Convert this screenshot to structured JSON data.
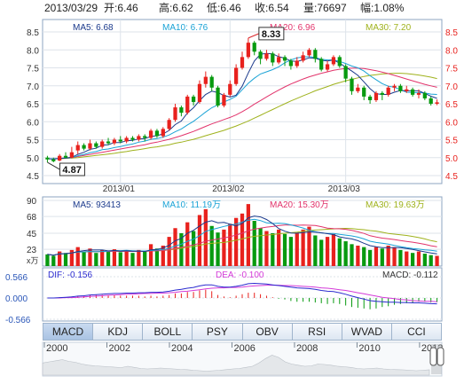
{
  "header": {
    "date": "2013/03/29",
    "open": "开:6.46",
    "high": "高:6.62",
    "low": "低:6.46",
    "close": "收:6.54",
    "volume": "量:76697",
    "change": "幅:1.08%"
  },
  "colors": {
    "up": "#e8211d",
    "down": "#079a0f",
    "ma5": "#1b3a8c",
    "ma10": "#1aa3d6",
    "ma20": "#e2336b",
    "ma30": "#9fb21c",
    "dif": "#2a2acf",
    "dea": "#d43ad8",
    "grid": "#dde3ea"
  },
  "price_panel": {
    "ma_labels": [
      "MA5: 6.68",
      "MA10: 6.76",
      "MA20: 6.96",
      "MA30: 7.20"
    ],
    "y_ticks": [
      "8.5",
      "8.0",
      "7.5",
      "7.0",
      "6.5",
      "6.0",
      "5.5",
      "5.0",
      "4.5"
    ],
    "x_ticks": [
      "2013/01",
      "2013/02",
      "2013/03"
    ],
    "high_label": "8.33",
    "low_label": "4.87"
  },
  "volume_panel": {
    "ma_labels": [
      "MA5: 93413",
      "MA10: 11.19万",
      "MA20: 15.30万",
      "MA30: 19.63万"
    ],
    "y_ticks": [
      "90",
      "68",
      "45",
      "23",
      "x万"
    ]
  },
  "macd_panel": {
    "labels": [
      "DIF: -0.156",
      "DEA: -0.100",
      "MACD: -0.112"
    ],
    "y_ticks": [
      "0.566",
      "0.000",
      "-0.566"
    ]
  },
  "tabs": [
    "MACD",
    "KDJ",
    "BOLL",
    "PSY",
    "OBV",
    "RSI",
    "WVAD",
    "CCI"
  ],
  "active_tab": "MACD",
  "timeline": {
    "years": [
      "2000",
      "2002",
      "2004",
      "2006",
      "2008",
      "2010",
      "2012"
    ]
  },
  "chart_data": {
    "type": "candlestick",
    "candles": [
      [
        5.0,
        4.95,
        5.05,
        4.87
      ],
      [
        4.95,
        4.9,
        5.0,
        4.87
      ],
      [
        4.92,
        5.05,
        5.1,
        4.9
      ],
      [
        5.05,
        5.0,
        5.15,
        4.98
      ],
      [
        5.0,
        5.15,
        5.3,
        4.98
      ],
      [
        5.2,
        5.35,
        5.45,
        5.1
      ],
      [
        5.35,
        5.25,
        5.4,
        5.2
      ],
      [
        5.25,
        5.4,
        5.5,
        5.2
      ],
      [
        5.4,
        5.3,
        5.45,
        5.25
      ],
      [
        5.3,
        5.45,
        5.5,
        5.25
      ],
      [
        5.45,
        5.4,
        5.55,
        5.35
      ],
      [
        5.4,
        5.5,
        5.55,
        5.35
      ],
      [
        5.5,
        5.45,
        5.6,
        5.4
      ],
      [
        5.45,
        5.55,
        5.6,
        5.4
      ],
      [
        5.55,
        5.5,
        5.6,
        5.45
      ],
      [
        5.5,
        5.6,
        5.65,
        5.45
      ],
      [
        5.6,
        5.55,
        5.65,
        5.45
      ],
      [
        5.55,
        5.75,
        5.8,
        5.5
      ],
      [
        5.75,
        5.6,
        5.8,
        5.55
      ],
      [
        5.6,
        5.8,
        5.85,
        5.55
      ],
      [
        5.8,
        6.05,
        6.1,
        5.75
      ],
      [
        6.05,
        6.4,
        6.5,
        6.0
      ],
      [
        6.4,
        6.25,
        6.45,
        6.15
      ],
      [
        6.25,
        6.7,
        6.75,
        6.2
      ],
      [
        6.7,
        6.55,
        6.75,
        6.45
      ],
      [
        6.55,
        7.05,
        7.15,
        6.5
      ],
      [
        7.05,
        7.25,
        7.4,
        6.95
      ],
      [
        7.25,
        6.95,
        7.3,
        6.85
      ],
      [
        6.95,
        6.45,
        7.0,
        6.4
      ],
      [
        6.45,
        6.75,
        6.8,
        6.4
      ],
      [
        6.75,
        7.05,
        7.15,
        6.7
      ],
      [
        7.05,
        7.5,
        7.6,
        7.0
      ],
      [
        7.5,
        7.8,
        7.95,
        7.45
      ],
      [
        7.8,
        8.2,
        8.33,
        7.75
      ],
      [
        8.2,
        7.95,
        8.25,
        7.85
      ],
      [
        7.95,
        7.75,
        8.0,
        7.6
      ],
      [
        7.75,
        7.9,
        8.0,
        7.7
      ],
      [
        7.9,
        7.65,
        7.95,
        7.55
      ],
      [
        7.65,
        7.8,
        7.9,
        7.6
      ],
      [
        7.8,
        7.7,
        7.85,
        7.55
      ],
      [
        7.7,
        7.55,
        7.75,
        7.45
      ],
      [
        7.55,
        7.7,
        7.8,
        7.5
      ],
      [
        7.7,
        7.85,
        7.95,
        7.65
      ],
      [
        7.85,
        8.0,
        8.05,
        7.8
      ],
      [
        8.0,
        7.75,
        8.05,
        7.65
      ],
      [
        7.75,
        7.45,
        7.8,
        7.4
      ],
      [
        7.45,
        7.6,
        7.7,
        7.4
      ],
      [
        7.6,
        7.8,
        7.85,
        7.55
      ],
      [
        7.8,
        7.55,
        7.85,
        7.5
      ],
      [
        7.55,
        7.2,
        7.6,
        7.1
      ],
      [
        7.2,
        6.85,
        7.25,
        6.75
      ],
      [
        6.85,
        6.95,
        7.05,
        6.8
      ],
      [
        6.95,
        6.7,
        7.0,
        6.6
      ],
      [
        6.7,
        6.6,
        6.75,
        6.5
      ],
      [
        6.6,
        6.8,
        6.85,
        6.55
      ],
      [
        6.8,
        6.75,
        6.85,
        6.6
      ],
      [
        6.75,
        6.95,
        7.0,
        6.7
      ],
      [
        6.95,
        7.0,
        7.05,
        6.85
      ],
      [
        7.0,
        6.85,
        7.05,
        6.8
      ],
      [
        6.85,
        6.9,
        7.0,
        6.8
      ],
      [
        6.9,
        6.75,
        6.95,
        6.7
      ],
      [
        6.75,
        6.8,
        6.9,
        6.65
      ],
      [
        6.8,
        6.65,
        6.85,
        6.6
      ],
      [
        6.65,
        6.5,
        6.7,
        6.45
      ],
      [
        6.5,
        6.54,
        6.62,
        6.46
      ]
    ],
    "volume": [
      16,
      14,
      20,
      18,
      22,
      26,
      20,
      24,
      18,
      22,
      20,
      23,
      19,
      21,
      18,
      22,
      20,
      30,
      24,
      28,
      40,
      52,
      45,
      60,
      48,
      70,
      78,
      55,
      46,
      50,
      58,
      66,
      72,
      85,
      62,
      52,
      48,
      45,
      50,
      44,
      40,
      46,
      50,
      54,
      42,
      36,
      40,
      44,
      38,
      34,
      30,
      28,
      26,
      22,
      26,
      24,
      28,
      26,
      22,
      20,
      18,
      20,
      17,
      15,
      14
    ],
    "ma5": [
      4.97,
      4.96,
      4.98,
      4.99,
      5.01,
      5.09,
      5.15,
      5.23,
      5.26,
      5.35,
      5.36,
      5.42,
      5.42,
      5.47,
      5.48,
      5.52,
      5.53,
      5.59,
      5.61,
      5.66,
      5.76,
      5.92,
      6.02,
      6.24,
      6.39,
      6.59,
      6.76,
      6.85,
      6.81,
      6.73,
      6.69,
      6.74,
      6.99,
      7.36,
      7.69,
      7.88,
      7.9,
      7.89,
      7.81,
      7.77,
      7.69,
      7.68,
      7.72,
      7.78,
      7.77,
      7.71,
      7.69,
      7.72,
      7.63,
      7.52,
      7.41,
      7.29,
      7.11,
      6.92,
      6.78,
      6.76,
      6.76,
      6.82,
      6.87,
      6.86,
      6.86,
      6.86,
      6.79,
      6.71,
      6.65
    ],
    "ma10": [
      4.97,
      4.97,
      4.98,
      4.99,
      5.0,
      5.05,
      5.09,
      5.14,
      5.17,
      5.22,
      5.24,
      5.28,
      5.31,
      5.35,
      5.38,
      5.43,
      5.46,
      5.51,
      5.53,
      5.57,
      5.63,
      5.72,
      5.8,
      5.91,
      6.01,
      6.14,
      6.27,
      6.39,
      6.47,
      6.55,
      6.62,
      6.71,
      6.89,
      7.07,
      7.21,
      7.33,
      7.39,
      7.45,
      7.53,
      7.64,
      7.72,
      7.78,
      7.8,
      7.81,
      7.79,
      7.74,
      7.72,
      7.72,
      7.68,
      7.62,
      7.55,
      7.5,
      7.41,
      7.28,
      7.17,
      7.06,
      6.99,
      6.96,
      6.89,
      6.82,
      6.81,
      6.81,
      6.8,
      6.77,
      6.76
    ],
    "ma20": [
      4.97,
      4.97,
      4.98,
      4.99,
      5.0,
      5.03,
      5.06,
      5.09,
      5.12,
      5.15,
      5.18,
      5.21,
      5.24,
      5.27,
      5.3,
      5.33,
      5.36,
      5.4,
      5.43,
      5.47,
      5.51,
      5.56,
      5.61,
      5.67,
      5.73,
      5.8,
      5.87,
      5.94,
      6.0,
      6.06,
      6.12,
      6.19,
      6.28,
      6.38,
      6.49,
      6.59,
      6.69,
      6.79,
      6.88,
      6.97,
      7.05,
      7.12,
      7.19,
      7.25,
      7.3,
      7.35,
      7.39,
      7.43,
      7.46,
      7.48,
      7.49,
      7.49,
      7.48,
      7.45,
      7.42,
      7.38,
      7.34,
      7.29,
      7.24,
      7.19,
      7.14,
      7.09,
      7.04,
      7.0,
      6.96
    ],
    "ma30": [
      4.97,
      4.97,
      4.97,
      4.98,
      4.99,
      5.0,
      5.02,
      5.04,
      5.06,
      5.08,
      5.1,
      5.12,
      5.15,
      5.17,
      5.2,
      5.22,
      5.25,
      5.28,
      5.3,
      5.33,
      5.36,
      5.4,
      5.43,
      5.47,
      5.51,
      5.56,
      5.61,
      5.66,
      5.71,
      5.76,
      5.82,
      5.88,
      5.95,
      6.02,
      6.1,
      6.18,
      6.26,
      6.34,
      6.42,
      6.5,
      6.58,
      6.65,
      6.72,
      6.79,
      6.86,
      6.92,
      6.98,
      7.04,
      7.09,
      7.14,
      7.18,
      7.22,
      7.26,
      7.29,
      7.31,
      7.33,
      7.34,
      7.35,
      7.35,
      7.34,
      7.32,
      7.3,
      7.27,
      7.24,
      7.2
    ],
    "dif": [
      0.0,
      0.0,
      0.01,
      0.02,
      0.03,
      0.05,
      0.06,
      0.08,
      0.09,
      0.1,
      0.11,
      0.12,
      0.12,
      0.13,
      0.13,
      0.14,
      0.14,
      0.15,
      0.15,
      0.16,
      0.18,
      0.21,
      0.23,
      0.26,
      0.28,
      0.32,
      0.35,
      0.35,
      0.31,
      0.29,
      0.29,
      0.31,
      0.34,
      0.38,
      0.39,
      0.38,
      0.37,
      0.35,
      0.33,
      0.31,
      0.29,
      0.27,
      0.26,
      0.25,
      0.23,
      0.2,
      0.18,
      0.17,
      0.14,
      0.1,
      0.05,
      0.01,
      -0.03,
      -0.07,
      -0.09,
      -0.1,
      -0.11,
      -0.11,
      -0.12,
      -0.12,
      -0.13,
      -0.13,
      -0.14,
      -0.15,
      -0.156
    ],
    "dea": [
      0.0,
      0.0,
      0.0,
      0.01,
      0.01,
      0.02,
      0.03,
      0.04,
      0.05,
      0.06,
      0.07,
      0.08,
      0.09,
      0.1,
      0.1,
      0.11,
      0.12,
      0.12,
      0.13,
      0.13,
      0.14,
      0.15,
      0.17,
      0.18,
      0.2,
      0.22,
      0.24,
      0.26,
      0.27,
      0.27,
      0.28,
      0.28,
      0.29,
      0.31,
      0.32,
      0.33,
      0.34,
      0.34,
      0.34,
      0.33,
      0.33,
      0.32,
      0.31,
      0.3,
      0.29,
      0.27,
      0.26,
      0.24,
      0.22,
      0.2,
      0.17,
      0.14,
      0.11,
      0.08,
      0.05,
      0.02,
      0.0,
      -0.02,
      -0.04,
      -0.05,
      -0.07,
      -0.08,
      -0.09,
      -0.09,
      -0.1
    ],
    "macd": [
      0.0,
      0.0,
      0.02,
      0.02,
      0.04,
      0.06,
      0.06,
      0.08,
      0.08,
      0.08,
      0.08,
      0.08,
      0.06,
      0.06,
      0.06,
      0.06,
      0.04,
      0.06,
      0.04,
      0.06,
      0.08,
      0.12,
      0.12,
      0.16,
      0.16,
      0.2,
      0.22,
      0.18,
      0.08,
      0.04,
      0.02,
      0.06,
      0.1,
      0.14,
      0.14,
      0.1,
      0.06,
      0.02,
      -0.02,
      -0.04,
      -0.08,
      -0.1,
      -0.1,
      -0.1,
      -0.12,
      -0.14,
      -0.16,
      -0.14,
      -0.16,
      -0.2,
      -0.24,
      -0.26,
      -0.28,
      -0.3,
      -0.28,
      -0.24,
      -0.22,
      -0.18,
      -0.16,
      -0.14,
      -0.12,
      -0.1,
      -0.1,
      -0.12,
      -0.112
    ],
    "ylim_price": [
      4.5,
      8.5
    ],
    "ylim_volume": [
      0,
      90
    ],
    "ylim_macd": [
      -0.566,
      0.566
    ],
    "timeline_profile": [
      0.55,
      0.6,
      0.65,
      0.7,
      0.62,
      0.58,
      0.5,
      0.45,
      0.42,
      0.4,
      0.38,
      0.36,
      0.34,
      0.4,
      0.35,
      0.3,
      0.28,
      0.3,
      0.32,
      0.3,
      0.28,
      0.26,
      0.25,
      0.22,
      0.2,
      0.18,
      0.2,
      0.22,
      0.25,
      0.28,
      0.3,
      0.35,
      0.4,
      0.55,
      0.75,
      0.9,
      0.8,
      0.6,
      0.5,
      0.45,
      0.4,
      0.42,
      0.5,
      0.48,
      0.45,
      0.4,
      0.38,
      0.35,
      0.3,
      0.28,
      0.3,
      0.32,
      0.28,
      0.26,
      0.25,
      0.24,
      0.22,
      0.2,
      0.22,
      0.24
    ]
  }
}
